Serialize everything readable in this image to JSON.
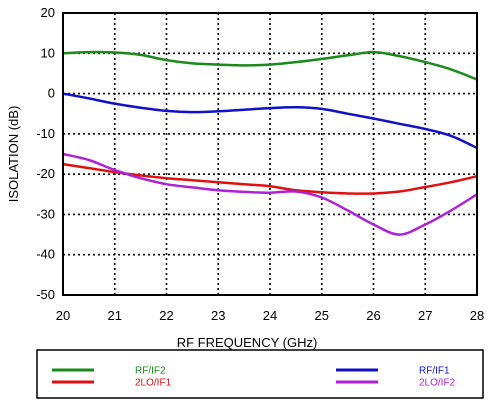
{
  "chart_data": {
    "type": "line",
    "title": "",
    "xlabel": "RF FREQUENCY (GHz)",
    "ylabel": "ISOLATION  (dB)",
    "xlim": [
      20,
      28
    ],
    "ylim": [
      -50,
      20
    ],
    "xticks": [
      "20",
      "21",
      "22",
      "23",
      "24",
      "25",
      "26",
      "27",
      "28"
    ],
    "yticks": [
      "20",
      "10",
      "0",
      "-10",
      "-20",
      "-30",
      "-40",
      "-50"
    ],
    "grid": true,
    "legend_position": "bottom",
    "series": [
      {
        "name": "RF/IF2",
        "color": "#1a8a1a",
        "x": [
          20,
          20.5,
          21,
          21.5,
          22,
          22.5,
          23,
          23.5,
          24,
          24.5,
          25,
          25.5,
          26,
          26.5,
          27,
          27.5,
          28
        ],
        "y": [
          10,
          10.3,
          10.2,
          9.6,
          8.3,
          7.5,
          7.2,
          7.0,
          7.2,
          7.8,
          8.6,
          9.5,
          10.3,
          9.3,
          7.8,
          6.0,
          3.5
        ]
      },
      {
        "name": "RF/IF1",
        "color": "#1010c8",
        "x": [
          20,
          20.5,
          21,
          21.5,
          22,
          22.5,
          23,
          23.5,
          24,
          24.5,
          25,
          25.5,
          26,
          26.5,
          27,
          27.5,
          28
        ],
        "y": [
          0,
          -1.2,
          -2.5,
          -3.5,
          -4.3,
          -4.6,
          -4.4,
          -4.0,
          -3.6,
          -3.4,
          -3.8,
          -5.0,
          -6.2,
          -7.5,
          -8.8,
          -10.5,
          -13.5
        ]
      },
      {
        "name": "2LO/IF1",
        "color": "#e01010",
        "x": [
          20,
          20.5,
          21,
          21.5,
          22,
          22.5,
          23,
          23.5,
          24,
          24.5,
          25,
          25.5,
          26,
          26.5,
          27,
          27.5,
          28
        ],
        "y": [
          -17.5,
          -18.5,
          -19.5,
          -20.3,
          -21.0,
          -21.5,
          -22.0,
          -22.5,
          -23.0,
          -24.0,
          -24.5,
          -24.8,
          -24.8,
          -24.3,
          -23.2,
          -22.0,
          -20.5
        ]
      },
      {
        "name": "2LO/IF2",
        "color": "#b020d8",
        "x": [
          20,
          20.5,
          21,
          21.5,
          22,
          22.5,
          23,
          23.5,
          24,
          24.5,
          25,
          25.5,
          26,
          26.5,
          27,
          27.5,
          28
        ],
        "y": [
          -15.0,
          -16.5,
          -19.0,
          -21.0,
          -22.5,
          -23.3,
          -24.0,
          -24.4,
          -24.6,
          -24.3,
          -25.8,
          -29.0,
          -32.5,
          -35.0,
          -32.5,
          -29.0,
          -25.0
        ]
      }
    ]
  },
  "legend": {
    "rows": [
      {
        "left": {
          "name": "RF/IF2",
          "color": "#1a8a1a"
        },
        "right": {
          "name": "RF/IF1",
          "color": "#1010c8"
        }
      },
      {
        "left": {
          "name": "2LO/IF1",
          "color": "#e01010"
        },
        "right": {
          "name": "2LO/IF2",
          "color": "#b020d8"
        }
      }
    ]
  }
}
